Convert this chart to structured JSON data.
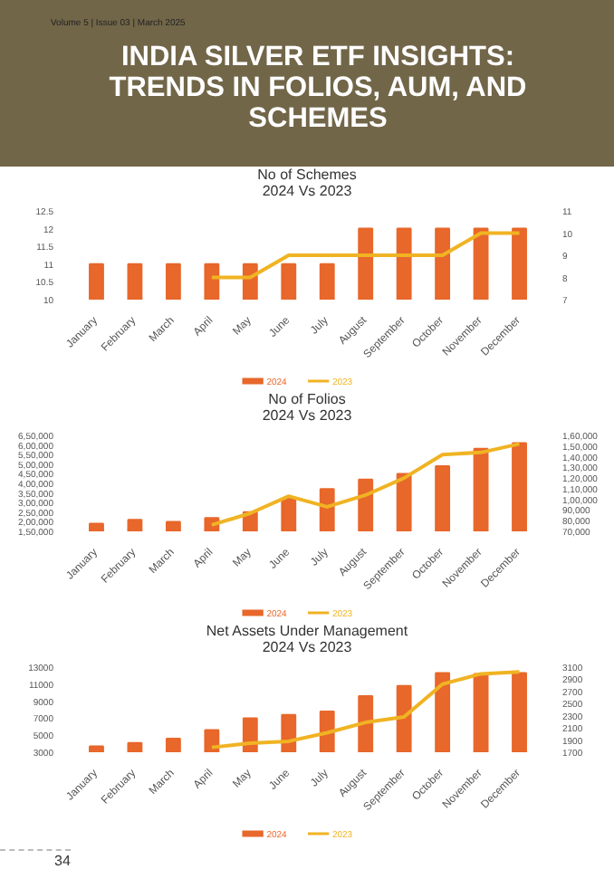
{
  "chart_data": [
    {
      "type": "other",
      "title": "INDIA SILVER ETF INSIGHTS: TRENDS IN FOLIOS, AUM, AND SCHEMES",
      "annotations": [
        "Volume 5 | Issue 03 | March 2025"
      ]
    },
    {
      "type": "bar",
      "title": "No of Schemes",
      "subtitle": "2024 Vs 2023",
      "categories": [
        "January",
        "February",
        "March",
        "April",
        "May",
        "June",
        "July",
        "August",
        "September",
        "October",
        "November",
        "December"
      ],
      "series": [
        {
          "name": "2024",
          "type": "bar",
          "color": "#e8672a",
          "values": [
            11,
            11,
            11,
            11,
            11,
            11,
            11,
            12,
            12,
            12,
            12,
            12
          ]
        },
        {
          "name": "2023",
          "type": "line",
          "axis": "y2",
          "color": "#f0b323",
          "values": [
            null,
            null,
            null,
            8,
            8,
            9,
            9,
            9,
            9,
            9,
            10,
            10
          ]
        }
      ],
      "ylim": [
        10,
        12.5
      ],
      "yticks": [
        10,
        10.5,
        11,
        11.5,
        12,
        12.5
      ],
      "y2lim": [
        7,
        11
      ],
      "y2ticks": [
        7,
        8,
        9,
        10,
        11
      ],
      "legend": "bottom",
      "grid": false,
      "marker": "none"
    },
    {
      "type": "bar",
      "title": "No of Folios",
      "subtitle": "2024 Vs 2023",
      "categories": [
        "January",
        "February",
        "March",
        "April",
        "May",
        "June",
        "July",
        "August",
        "September",
        "October",
        "November",
        "December"
      ],
      "series": [
        {
          "name": "2024",
          "type": "bar",
          "color": "#e8672a",
          "values": [
            190000,
            210000,
            200000,
            220000,
            250000,
            320000,
            370000,
            420000,
            450000,
            490000,
            580000,
            610000
          ]
        },
        {
          "name": "2023",
          "type": "line",
          "axis": "y2",
          "color": "#f0b323",
          "values": [
            null,
            null,
            null,
            76000,
            87000,
            103000,
            93000,
            104000,
            120000,
            142000,
            144000,
            152000
          ]
        }
      ],
      "ylim": [
        150000,
        650000
      ],
      "yticks": [
        {
          "value": 150000,
          "label": "1,50,000"
        },
        {
          "value": 200000,
          "label": "2,00,000"
        },
        {
          "value": 250000,
          "label": "2,50,000"
        },
        {
          "value": 300000,
          "label": "3,00,000"
        },
        {
          "value": 350000,
          "label": "3,50,000"
        },
        {
          "value": 400000,
          "label": "4,00,000"
        },
        {
          "value": 450000,
          "label": "4,50,000"
        },
        {
          "value": 500000,
          "label": "5,00,000"
        },
        {
          "value": 550000,
          "label": "5,50,000"
        },
        {
          "value": 600000,
          "label": "6,00,000"
        },
        {
          "value": 650000,
          "label": "6,50,000"
        }
      ],
      "y2lim": [
        70000,
        160000
      ],
      "y2ticks": [
        {
          "value": 70000,
          "label": "70,000"
        },
        {
          "value": 80000,
          "label": "80,000"
        },
        {
          "value": 90000,
          "label": "90,000"
        },
        {
          "value": 100000,
          "label": "1,00,000"
        },
        {
          "value": 110000,
          "label": "1,10,000"
        },
        {
          "value": 120000,
          "label": "1,20,000"
        },
        {
          "value": 130000,
          "label": "1,30,000"
        },
        {
          "value": 140000,
          "label": "1,40,000"
        },
        {
          "value": 150000,
          "label": "1,50,000"
        },
        {
          "value": 160000,
          "label": "1,60,000"
        }
      ],
      "legend": "bottom",
      "grid": false,
      "marker": "none"
    },
    {
      "type": "bar",
      "title": "Net Assets Under Management",
      "subtitle": "2024 Vs 2023",
      "categories": [
        "January",
        "February",
        "March",
        "April",
        "May",
        "June",
        "July",
        "August",
        "September",
        "October",
        "November",
        "December"
      ],
      "series": [
        {
          "name": "2024",
          "type": "bar",
          "color": "#e8672a",
          "values": [
            3700,
            4100,
            4600,
            5600,
            7000,
            7400,
            7800,
            9600,
            10800,
            12300,
            12200,
            12300
          ]
        },
        {
          "name": "2023",
          "type": "line",
          "axis": "y2",
          "color": "#f0b323",
          "values": [
            null,
            null,
            null,
            1780,
            1850,
            1880,
            2020,
            2190,
            2280,
            2820,
            2990,
            3020
          ]
        }
      ],
      "ylim": [
        3000,
        13000
      ],
      "yticks": [
        3000,
        5000,
        7000,
        9000,
        11000,
        13000
      ],
      "y2lim": [
        1700,
        3100
      ],
      "y2ticks": [
        1700,
        1900,
        2100,
        2300,
        2500,
        2700,
        2900,
        3100
      ],
      "legend": "bottom",
      "grid": false,
      "marker": "none",
      "annotations": [
        "34"
      ]
    }
  ]
}
